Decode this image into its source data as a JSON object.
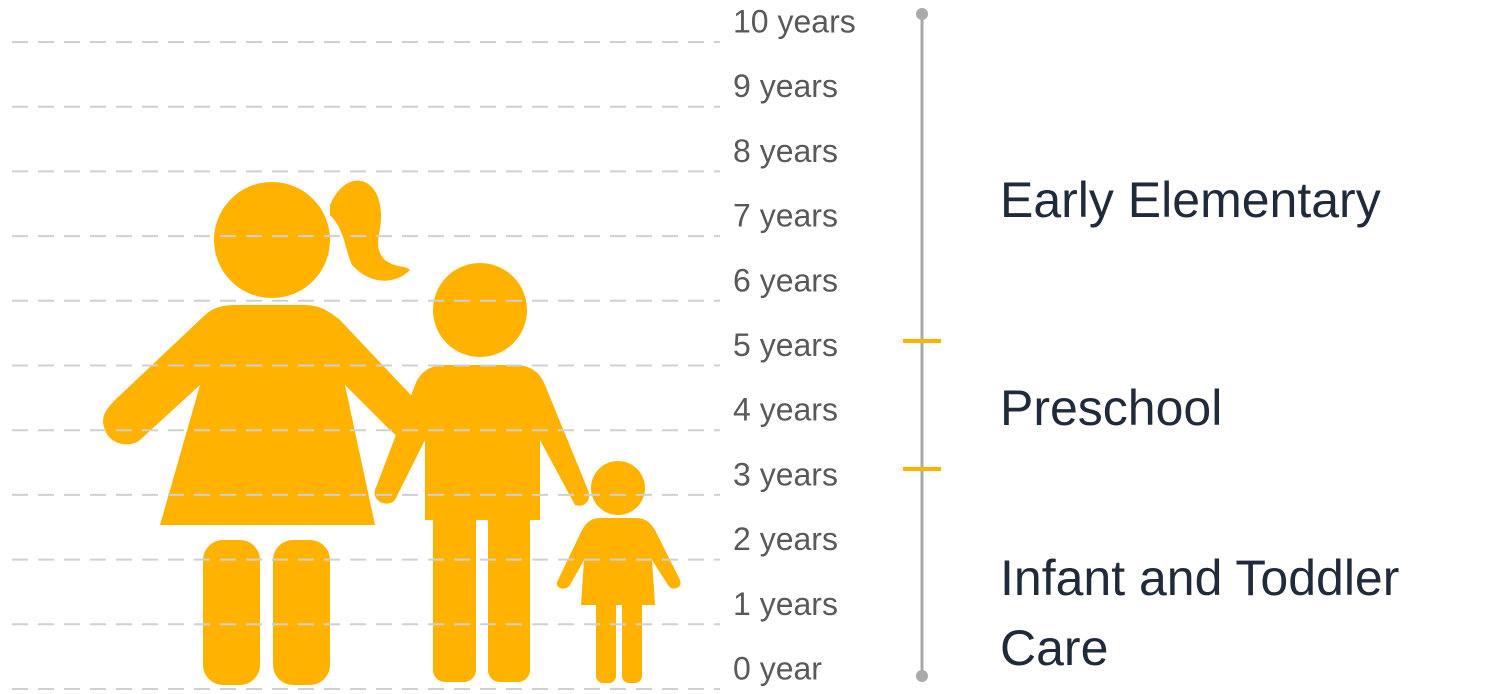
{
  "age_labels": [
    "10 years",
    "9 years",
    "8 years",
    "7 years",
    "6 years",
    "5 years",
    "4 years",
    "3 years",
    "2 years",
    "1 years",
    "0 year"
  ],
  "stages": [
    {
      "label": "Early Elementary"
    },
    {
      "label": "Preschool"
    },
    {
      "label": "Infant and Toddler Care"
    }
  ]
}
